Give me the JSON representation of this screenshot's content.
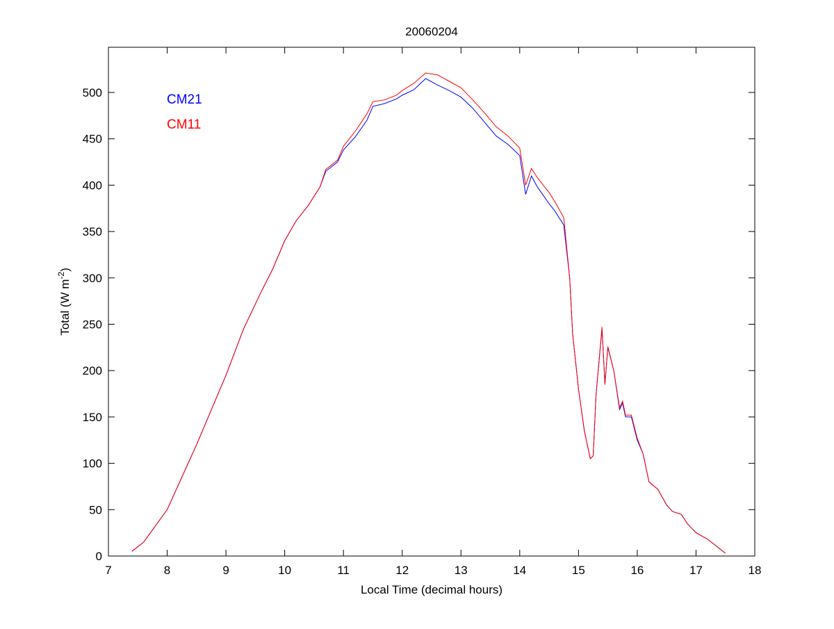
{
  "chart_data": {
    "type": "line",
    "title": "20060204",
    "xlabel": "Local Time (decimal hours)",
    "ylabel_main": "Total (W m",
    "ylabel_sup": "-2",
    "ylabel_end": ")",
    "xlim": [
      7,
      18
    ],
    "ylim": [
      0,
      540
    ],
    "xticks": [
      7,
      8,
      9,
      10,
      11,
      12,
      13,
      14,
      15,
      16,
      17,
      18
    ],
    "yticks": [
      0,
      50,
      100,
      150,
      200,
      250,
      300,
      350,
      400,
      450,
      500
    ],
    "grid": false,
    "legend_placement": "top-left",
    "x": [
      7.4,
      7.6,
      8.0,
      8.5,
      9.0,
      9.3,
      9.6,
      9.8,
      10.0,
      10.2,
      10.4,
      10.6,
      10.7,
      10.9,
      11.0,
      11.2,
      11.4,
      11.5,
      11.7,
      11.9,
      12.0,
      12.2,
      12.4,
      12.6,
      12.8,
      13.0,
      13.2,
      13.4,
      13.6,
      13.8,
      14.0,
      14.1,
      14.2,
      14.3,
      14.5,
      14.6,
      14.75,
      14.85,
      14.9,
      15.0,
      15.1,
      15.2,
      15.25,
      15.3,
      15.4,
      15.45,
      15.5,
      15.6,
      15.7,
      15.75,
      15.8,
      15.9,
      16.0,
      16.1,
      16.2,
      16.35,
      16.5,
      16.6,
      16.75,
      16.85,
      17.0,
      17.2,
      17.4,
      17.5
    ],
    "series": [
      {
        "name": "CM21",
        "color": "#0000ff",
        "values": [
          5,
          15,
          50,
          120,
          195,
          245,
          285,
          310,
          340,
          362,
          378,
          398,
          415,
          425,
          438,
          452,
          470,
          485,
          488,
          493,
          497,
          503,
          515,
          508,
          502,
          495,
          483,
          468,
          453,
          444,
          432,
          390,
          410,
          398,
          380,
          372,
          357,
          300,
          240,
          180,
          135,
          105,
          108,
          175,
          245,
          185,
          225,
          200,
          158,
          165,
          150,
          150,
          125,
          110,
          80,
          72,
          55,
          48,
          45,
          35,
          25,
          18,
          8,
          3
        ]
      },
      {
        "name": "CM11",
        "color": "#ff0000",
        "values": [
          5,
          15,
          50,
          120,
          195,
          245,
          285,
          310,
          340,
          362,
          378,
          398,
          417,
          427,
          442,
          458,
          477,
          490,
          492,
          497,
          502,
          510,
          521,
          519,
          512,
          505,
          492,
          478,
          463,
          453,
          440,
          400,
          418,
          408,
          392,
          382,
          365,
          300,
          240,
          180,
          135,
          105,
          108,
          175,
          247,
          185,
          226,
          200,
          160,
          167,
          152,
          152,
          127,
          110,
          80,
          72,
          55,
          48,
          45,
          35,
          25,
          18,
          8,
          3
        ]
      }
    ]
  }
}
